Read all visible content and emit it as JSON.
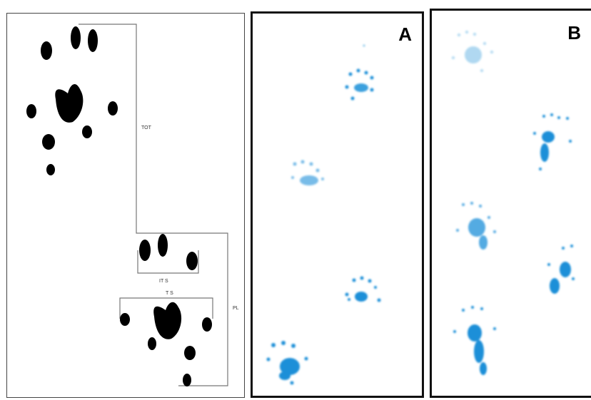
{
  "diagram": {
    "labels": {
      "top": "TOT",
      "its": "IT S",
      "ts": "T S",
      "pl": "PL"
    },
    "colors": {
      "paw": "#000000",
      "line": "#777777"
    }
  },
  "panel_a": {
    "letter": "A",
    "print_color": "#1a8fd8"
  },
  "panel_b": {
    "letter": "B",
    "print_color": "#1a8fd8"
  }
}
